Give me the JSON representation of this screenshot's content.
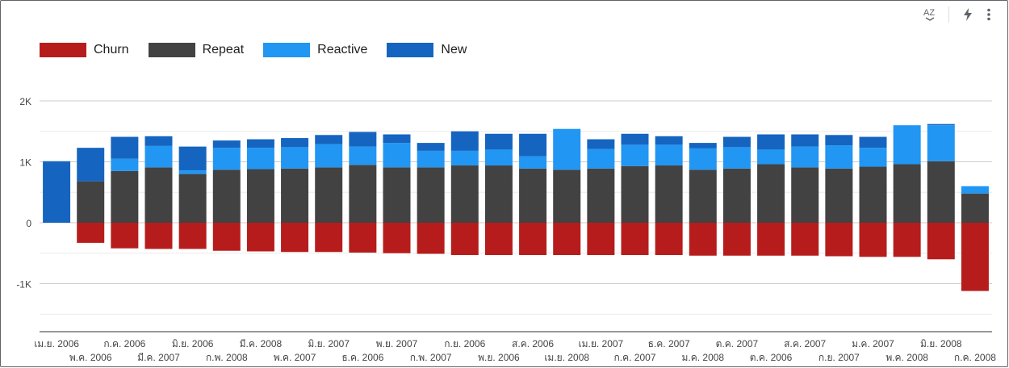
{
  "toolbar": {
    "sort_icon_label": "AZ"
  },
  "chart_data": {
    "type": "bar",
    "stacked": true,
    "categories": [
      "เม.ย. 2006",
      "พ.ค. 2006",
      "ก.ค. 2006",
      "มี.ค. 2007",
      "มิ.ย. 2006",
      "ก.พ. 2008",
      "มี.ค. 2008",
      "พ.ค. 2007",
      "มิ.ย. 2007",
      "ธ.ค. 2006",
      "พ.ย. 2007",
      "ก.พ. 2007",
      "ก.ย. 2006",
      "พ.ย. 2006",
      "ส.ค. 2006",
      "เม.ย. 2008",
      "เม.ย. 2007",
      "ก.ค. 2007",
      "ธ.ค. 2007",
      "ม.ค. 2008",
      "ต.ค. 2007",
      "ต.ค. 2006",
      "ส.ค. 2007",
      "ก.ย. 2007",
      "ม.ค. 2007",
      "พ.ค. 2008",
      "มิ.ย. 2008",
      "ก.ค. 2008"
    ],
    "series": [
      {
        "name": "Churn",
        "color": "#b71c1c",
        "values": [
          0,
          -330,
          -420,
          -430,
          -430,
          -460,
          -470,
          -480,
          -480,
          -490,
          -500,
          -510,
          -530,
          -530,
          -530,
          -530,
          -530,
          -530,
          -530,
          -540,
          -540,
          -540,
          -540,
          -550,
          -560,
          -560,
          -600,
          -1120
        ]
      },
      {
        "name": "Repeat",
        "color": "#424242",
        "values": [
          0,
          680,
          850,
          910,
          800,
          870,
          880,
          890,
          910,
          950,
          910,
          910,
          940,
          940,
          890,
          870,
          890,
          930,
          940,
          870,
          890,
          960,
          910,
          890,
          920,
          960,
          1010,
          480
        ]
      },
      {
        "name": "Reactive",
        "color": "#2196f3",
        "values": [
          0,
          0,
          200,
          350,
          60,
          360,
          350,
          350,
          380,
          300,
          400,
          270,
          240,
          260,
          200,
          670,
          320,
          350,
          340,
          350,
          350,
          240,
          340,
          380,
          310,
          640,
          590,
          120
        ]
      },
      {
        "name": "New",
        "color": "#1565c0",
        "values": [
          1010,
          550,
          360,
          160,
          390,
          120,
          140,
          150,
          150,
          240,
          140,
          130,
          320,
          260,
          370,
          0,
          160,
          180,
          140,
          90,
          170,
          250,
          200,
          170,
          180,
          0,
          20,
          0
        ]
      }
    ],
    "ylim": [
      -1500,
      2200
    ],
    "yticks": [
      -1000,
      0,
      1000,
      2000
    ],
    "ytick_labels": [
      "-1K",
      "0",
      "1K",
      "2K"
    ],
    "legend_position": "top-left",
    "grid": true,
    "xlabel": "",
    "ylabel": ""
  }
}
